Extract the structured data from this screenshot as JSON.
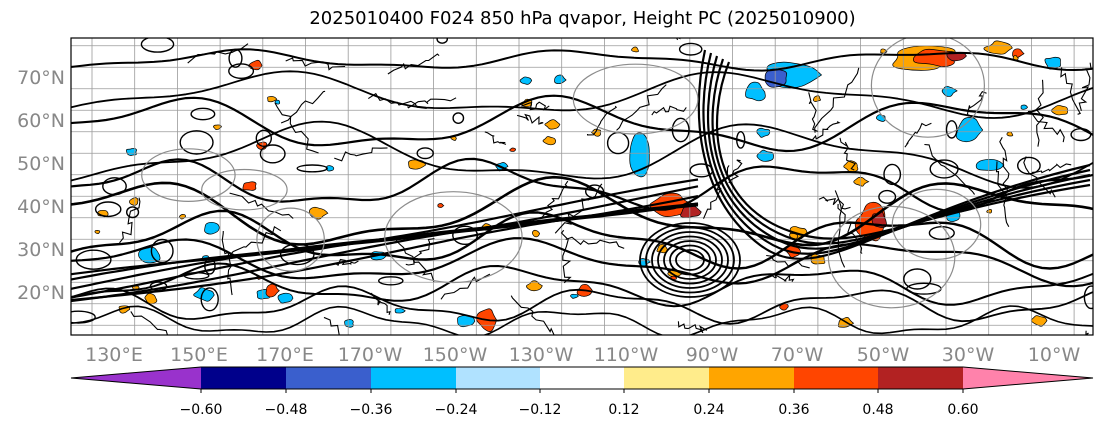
{
  "title": "2025010400 F024 850 hPa qvapor, Height PC (2025010900)",
  "lat_labels": [
    "70°N",
    "60°N",
    "50°N",
    "40°N",
    "30°N",
    "20°N"
  ],
  "lon_labels": [
    "130°E",
    "150°E",
    "170°E",
    "170°W",
    "150°W",
    "130°W",
    "110°W",
    "90°W",
    "70°W",
    "50°W",
    "30°W",
    "10°W"
  ],
  "colorbar": {
    "ticks": [
      "−0.60",
      "−0.48",
      "−0.36",
      "−0.24",
      "−0.12",
      "0.12",
      "0.24",
      "0.36",
      "0.48",
      "0.60"
    ],
    "colors": [
      "#9932cc",
      "#00008b",
      "#3a5fcd",
      "#00bfff",
      "#b0e2ff",
      "#ffffff",
      "#ffec8b",
      "#ffa500",
      "#ff4500",
      "#b22222",
      "#ff82ab"
    ]
  },
  "shading_colors": {
    "neg_strong": "#3a5fcd",
    "neg_mid": "#00bfff",
    "pos_weak": "#ffa500",
    "pos_mid": "#ff4500",
    "pos_strong": "#b22222"
  }
}
